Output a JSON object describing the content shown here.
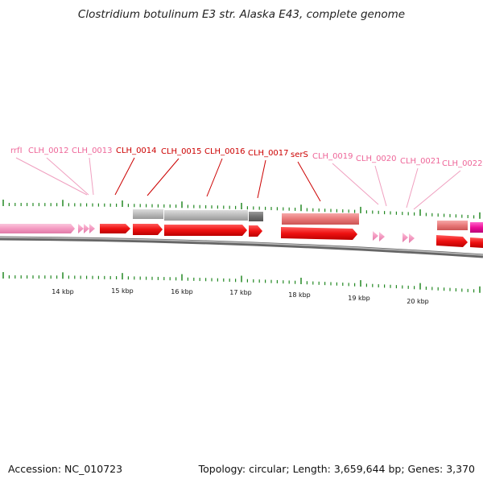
{
  "title": "Clostridium botulinum E3 str. Alaska E43, complete genome",
  "footer": {
    "accession": "Accession: NC_010723",
    "summary": "Topology: circular; Length: 3,659,644 bp; Genes: 3,370"
  },
  "colors": {
    "cds": "#ee1111",
    "rna": "#ee7777",
    "other": "#f49ac1",
    "gene_gray": "#b8b8b8",
    "gene_dark": "#707070",
    "label_dark": "#cc0000",
    "label_light": "#ee6699",
    "tick": "#228822",
    "backbone": "#888888"
  },
  "chart_data": {
    "type": "genome-map",
    "unit": "kbp",
    "scale_labels": [
      "14 kbp",
      "15 kbp",
      "16 kbp",
      "17 kbp",
      "18 kbp",
      "19 kbp",
      "20 kbp"
    ],
    "gene_labels": [
      {
        "label": "rrfI",
        "style": "light"
      },
      {
        "label": "CLH_0012",
        "style": "light"
      },
      {
        "label": "CLH_0013",
        "style": "light"
      },
      {
        "label": "CLH_0014",
        "style": "dark"
      },
      {
        "label": "CLH_0015",
        "style": "dark"
      },
      {
        "label": "CLH_0016",
        "style": "dark"
      },
      {
        "label": "CLH_0017",
        "style": "dark"
      },
      {
        "label": "serS",
        "style": "dark"
      },
      {
        "label": "CLH_0019",
        "style": "light"
      },
      {
        "label": "CLH_0020",
        "style": "light"
      },
      {
        "label": "CLH_0021",
        "style": "light"
      },
      {
        "label": "CLH_0022",
        "style": "light"
      }
    ]
  }
}
